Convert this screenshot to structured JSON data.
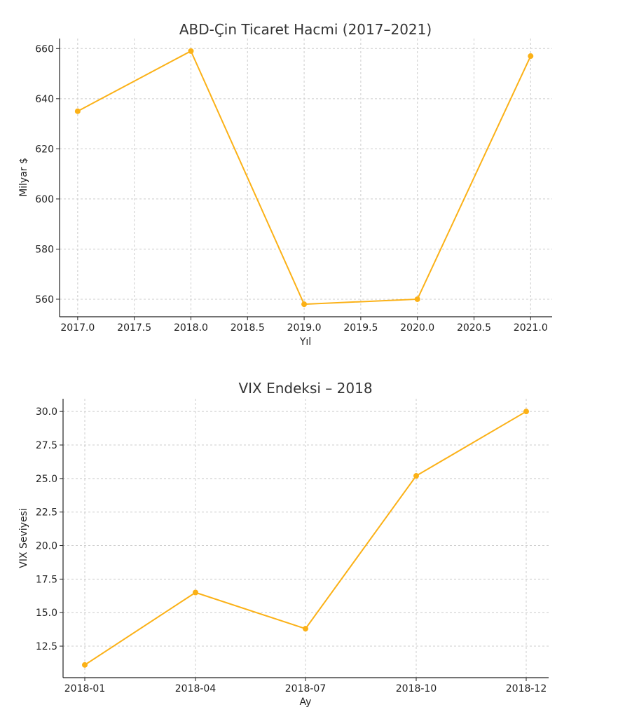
{
  "chart_data": [
    {
      "type": "line",
      "title": "ABD-Çin Ticaret Hacmi (2017–2021)",
      "xlabel": "Yıl",
      "ylabel": "Milyar $",
      "x": [
        2017,
        2018,
        2019,
        2020,
        2021
      ],
      "values": [
        635,
        659,
        558,
        560,
        657
      ],
      "x_ticks": [
        "2017.0",
        "2017.5",
        "2018.0",
        "2018.5",
        "2019.0",
        "2019.5",
        "2020.0",
        "2020.5",
        "2021.0"
      ],
      "y_ticks": [
        "560",
        "580",
        "600",
        "620",
        "640",
        "660"
      ],
      "color": "#FBB117",
      "grid": true
    },
    {
      "type": "line",
      "title": "VIX Endeksi – 2018",
      "xlabel": "Ay",
      "ylabel": "VIX Seviyesi",
      "categories": [
        "2018-01",
        "2018-04",
        "2018-07",
        "2018-10",
        "2018-12"
      ],
      "values": [
        11.1,
        16.5,
        13.8,
        25.2,
        30.0
      ],
      "y_ticks": [
        "12.5",
        "15.0",
        "17.5",
        "20.0",
        "22.5",
        "25.0",
        "27.5",
        "30.0"
      ],
      "color": "#FBB117",
      "grid": true
    }
  ]
}
